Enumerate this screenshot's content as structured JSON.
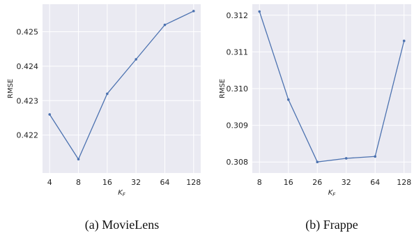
{
  "chart_data": [
    {
      "type": "line",
      "caption": "(a) MovieLens",
      "xlabel_main": "K",
      "xlabel_sub": "F",
      "ylabel": "RMSE",
      "categories": [
        "4",
        "8",
        "16",
        "32",
        "64",
        "128"
      ],
      "values": [
        0.4226,
        0.4213,
        0.4232,
        0.4242,
        0.4252,
        0.4256
      ],
      "ylim": [
        0.4209,
        0.4258
      ],
      "yticks": [
        0.422,
        0.423,
        0.424,
        0.425
      ],
      "ytick_labels": [
        "0.422",
        "0.423",
        "0.424",
        "0.425"
      ],
      "grid": true,
      "line_color": "#4c72b0",
      "bg_color": "#eaeaf2"
    },
    {
      "type": "line",
      "caption": "(b) Frappe",
      "xlabel_main": "K",
      "xlabel_sub": "F",
      "ylabel": "RMSE",
      "categories": [
        "8",
        "16",
        "26",
        "32",
        "64",
        "128"
      ],
      "values": [
        0.3121,
        0.3097,
        0.308,
        0.3081,
        0.30815,
        0.3113
      ],
      "ylim": [
        0.3077,
        0.3123
      ],
      "yticks": [
        0.308,
        0.309,
        0.31,
        0.311,
        0.312
      ],
      "ytick_labels": [
        "0.308",
        "0.309",
        "0.310",
        "0.311",
        "0.312"
      ],
      "grid": true,
      "line_color": "#4c72b0",
      "bg_color": "#eaeaf2"
    }
  ]
}
